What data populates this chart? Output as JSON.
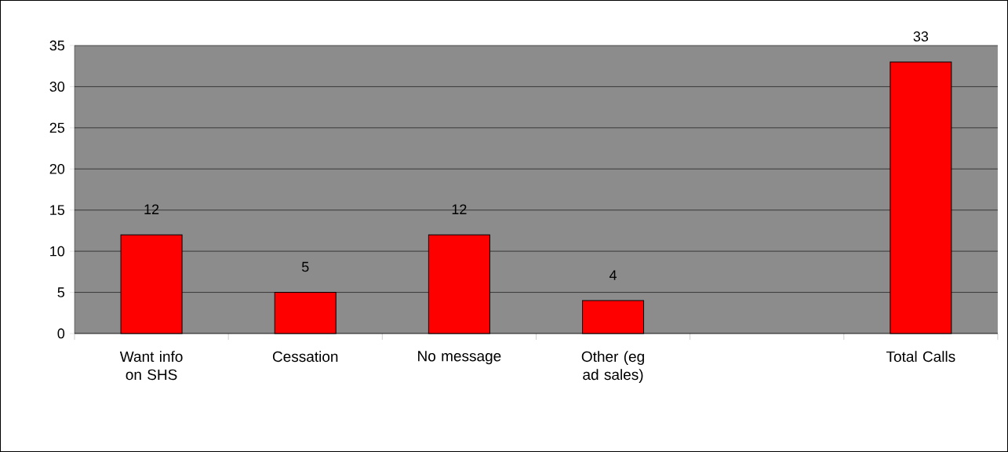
{
  "chart_data": {
    "type": "bar",
    "categories": [
      "Want info on SHS",
      "Cessation",
      "No message",
      "Other (eg ad sales)",
      null,
      "Total Calls"
    ],
    "values": [
      12,
      5,
      12,
      4,
      null,
      33
    ],
    "color": "#ff0000",
    "ylim": [
      0,
      35
    ],
    "yticks": [
      0,
      5,
      10,
      15,
      20,
      25,
      30,
      35
    ],
    "grid": "y",
    "data_labels": true
  }
}
